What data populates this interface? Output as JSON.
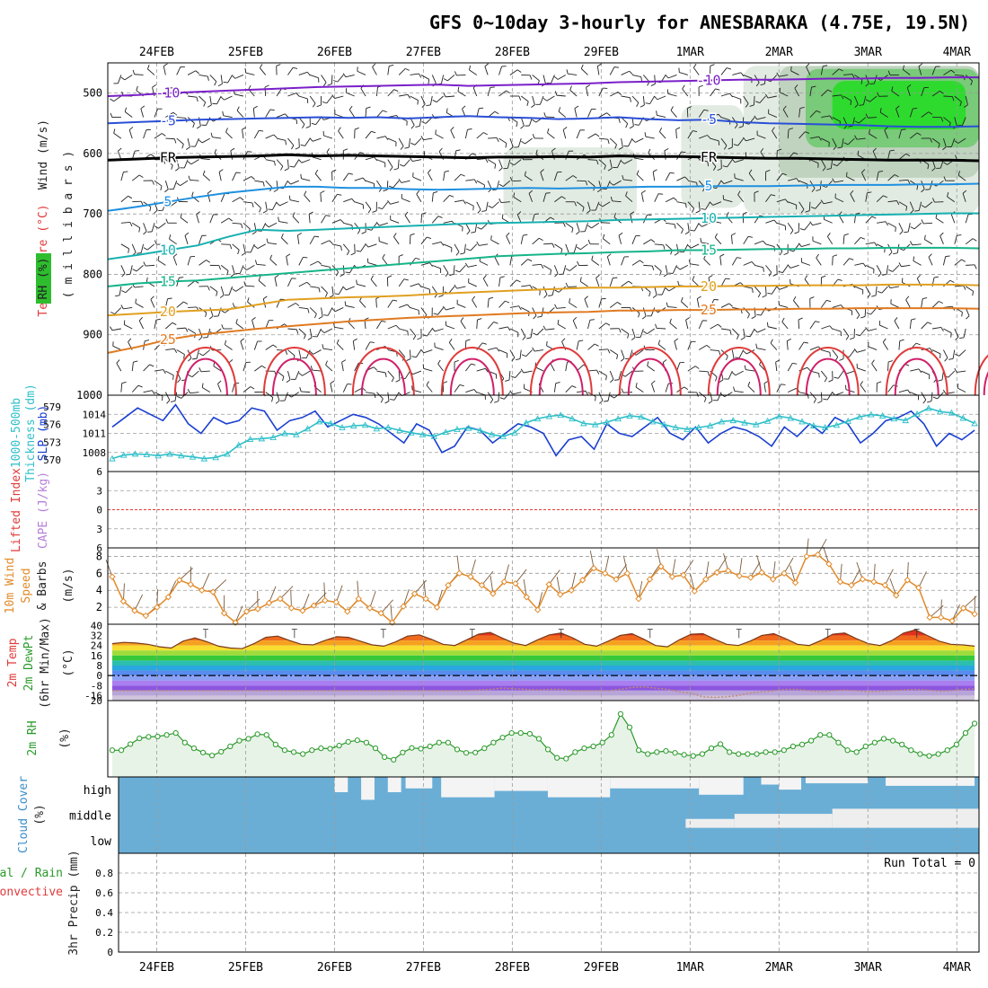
{
  "colors": {
    "grid": "#9a9a9a",
    "wind_barb": "#222222",
    "temp_minus10": "#7a1fc9",
    "temp_minus5": "#2a4fd6",
    "temp_fr": "#000000",
    "temp_5": "#1e90e0",
    "temp_10": "#17b0b0",
    "temp_15": "#16b48a",
    "temp_20": "#e0a020",
    "temp_25": "#e07a20",
    "temp_30": "#e03a3a",
    "temp_35": "#d0206a",
    "rh_light": "#dde8dd",
    "rh_mid": "#6cc86c",
    "rh_high": "#22dd22",
    "slp": "#1a3fd0",
    "thickness": "#2fbfc9",
    "lifted_index_zero": "#e03a3a",
    "wind_speed": "#e08a2a",
    "rh2m": "#2a9a2a",
    "rh2m_fill": "#e8f3e8",
    "cloud_fill": "#6aaed6",
    "cloud_clear": "#eeeeee"
  },
  "chart_data": [
    {
      "id": "upper-air",
      "type": "line",
      "title": "GFS 0~10day 3-hourly for ANESBARAKA (4.75E, 19.5N)",
      "x_tick_labels": [
        "24FEB",
        "25FEB",
        "26FEB",
        "27FEB",
        "28FEB",
        "29FEB",
        "1MAR",
        "2MAR",
        "3MAR",
        "4MAR"
      ],
      "x_range_days": [
        -0.55,
        9.25
      ],
      "ylabel_parts": [
        "RH (%)",
        "Temperature (°C)",
        "Wind (m/s)"
      ],
      "ylabel2": "( m i l l i b a r s )",
      "y_ticks": [
        500,
        600,
        700,
        800,
        900,
        1000
      ],
      "ylim": [
        450,
        1000
      ],
      "isotherms": [
        {
          "label": "-10",
          "color_key": "temp_minus10",
          "levels": [
            505,
            503,
            500,
            498,
            496,
            494,
            492,
            490,
            489,
            488,
            487,
            486,
            488,
            487,
            486,
            485,
            484,
            482,
            481,
            480,
            479,
            478,
            478,
            477,
            476,
            476,
            475,
            475,
            474,
            474
          ]
        },
        {
          "label": "-5",
          "color_key": "temp_minus5",
          "levels": [
            550,
            548,
            546,
            544,
            543,
            542,
            541,
            540,
            541,
            540,
            542,
            540,
            538,
            540,
            541,
            543,
            542,
            540,
            543,
            545,
            544,
            548,
            550,
            551,
            552,
            553,
            555,
            556,
            556,
            555
          ]
        },
        {
          "label": "FR",
          "color_key": "temp_fr",
          "levels": [
            611,
            609,
            607,
            606,
            605,
            604,
            602,
            604,
            603,
            604,
            605,
            606,
            607,
            606,
            606,
            605,
            606,
            604,
            605,
            605,
            606,
            607,
            608,
            608,
            609,
            610,
            611,
            611,
            611,
            612
          ]
        },
        {
          "label": "5",
          "color_key": "temp_5",
          "levels": [
            695,
            688,
            680,
            672,
            665,
            660,
            655,
            655,
            657,
            657,
            659,
            660,
            659,
            658,
            657,
            658,
            657,
            656,
            655,
            655,
            654,
            654,
            654,
            653,
            652,
            652,
            652,
            651,
            651,
            650
          ]
        },
        {
          "label": "10",
          "color_key": "temp_10",
          "levels": [
            775,
            768,
            760,
            752,
            738,
            726,
            728,
            726,
            724,
            722,
            720,
            718,
            716,
            715,
            714,
            713,
            712,
            710,
            709,
            708,
            707,
            706,
            705,
            704,
            703,
            702,
            701,
            700,
            699,
            699
          ]
        },
        {
          "label": "15",
          "color_key": "temp_15",
          "levels": [
            820,
            815,
            812,
            810,
            806,
            802,
            798,
            794,
            790,
            786,
            782,
            778,
            774,
            770,
            768,
            766,
            765,
            763,
            762,
            760,
            760,
            759,
            758,
            758,
            757,
            757,
            756,
            756,
            756,
            757
          ]
        },
        {
          "label": "20",
          "color_key": "temp_20",
          "levels": [
            868,
            865,
            862,
            860,
            858,
            850,
            842,
            840,
            838,
            837,
            835,
            832,
            830,
            828,
            826,
            824,
            822,
            822,
            821,
            820,
            820,
            819,
            819,
            818,
            818,
            818,
            817,
            817,
            817,
            818
          ]
        },
        {
          "label": "25",
          "color_key": "temp_25",
          "levels": [
            930,
            920,
            908,
            900,
            895,
            890,
            886,
            882,
            878,
            875,
            872,
            870,
            868,
            866,
            864,
            863,
            862,
            860,
            860,
            859,
            859,
            858,
            858,
            857,
            857,
            856,
            856,
            856,
            856,
            857
          ]
        }
      ],
      "freezing_label": "FR"
    },
    {
      "id": "slp-thickness",
      "type": "line",
      "ylabel_left": [
        "1000-500mb",
        "Thickness (dm)"
      ],
      "ylabel_right": "SLP (mb)",
      "y_ticks_thickness": [
        570,
        573,
        576,
        579
      ],
      "y_ticks_slp": [
        1008,
        1011,
        1014
      ],
      "ylim_slp": [
        1005,
        1017
      ],
      "ylim_thickness": [
        568,
        581
      ],
      "series": [
        {
          "name": "SLP",
          "color_key": "slp",
          "values": [
            1012.0,
            1013.5,
            1015.0,
            1014.0,
            1013.0,
            1015.5,
            1012.5,
            1011.0,
            1013.5,
            1012.5,
            1013.0,
            1015.0,
            1014.5,
            1011.5,
            1013.0,
            1013.5,
            1014.5,
            1012.0,
            1013.0,
            1014.0,
            1013.5,
            1012.5,
            1011.0,
            1009.5,
            1012.5,
            1011.5,
            1008.0,
            1009.0,
            1012.0,
            1011.5,
            1009.5,
            1011.0,
            1012.5,
            1012.0,
            1011.0,
            1007.5,
            1010.0,
            1010.5,
            1008.5,
            1012.5,
            1011.0,
            1010.5,
            1012.0,
            1013.5,
            1011.0,
            1010.0,
            1012.0,
            1009.5,
            1011.0,
            1012.0,
            1011.5,
            1010.5,
            1009.0,
            1012.0,
            1010.5,
            1012.5,
            1011.0,
            1013.5,
            1012.5,
            1009.5,
            1011.0,
            1013.0,
            1013.5,
            1014.5,
            1012.5,
            1009.0,
            1011.0,
            1010.0,
            1011.5
          ]
        },
        {
          "name": "Thickness",
          "color_key": "thickness",
          "values": [
            570.2,
            570.8,
            571.0,
            570.9,
            570.7,
            571.0,
            570.7,
            570.5,
            570.2,
            570.4,
            571.0,
            572.5,
            573.5,
            573.6,
            573.8,
            574.5,
            574.3,
            575.3,
            576.5,
            576.2,
            575.5,
            575.8,
            575.9,
            575.3,
            575.5,
            575.0,
            574.6,
            574.3,
            574.0,
            574.7,
            575.2,
            575.4,
            575.0,
            574.3,
            574.0,
            574.6,
            576.3,
            577.0,
            577.4,
            577.6,
            577.0,
            576.2,
            576.0,
            576.4,
            577.0,
            577.5,
            577.3,
            576.5,
            576.0,
            575.5,
            575.2,
            575.5,
            575.8,
            576.5,
            576.7,
            576.3,
            576.0,
            576.6,
            577.4,
            577.1,
            576.5,
            575.8,
            575.5,
            575.9,
            576.6,
            577.3,
            577.7,
            577.5,
            577.0,
            576.7,
            577.8,
            578.8,
            578.2,
            578.0,
            577.1,
            576.2
          ]
        }
      ]
    },
    {
      "id": "cape-li",
      "type": "line",
      "ylabel_left": "Lifted Index",
      "ylabel_right": "CAPE (J/kg)",
      "y_tick_labels": [
        "6",
        "3",
        "0",
        "3",
        "6"
      ],
      "ylim": [
        -6,
        6
      ],
      "zero_line_value": 0
    },
    {
      "id": "wind10m",
      "type": "line",
      "ylabel": [
        "10m Wind",
        "Speed",
        "& Barbs",
        "(m/s)"
      ],
      "y_ticks": [
        2,
        4,
        6,
        8
      ],
      "ylim": [
        0,
        9
      ],
      "series": [
        {
          "name": "10m wind speed",
          "color_key": "wind_speed",
          "values": [
            5.6,
            2.7,
            1.6,
            1.0,
            2.0,
            3.2,
            5.2,
            4.7,
            4.0,
            3.8,
            1.3,
            0.2,
            1.5,
            1.8,
            2.5,
            3.0,
            1.9,
            1.6,
            2.2,
            2.8,
            2.6,
            1.5,
            3.0,
            1.9,
            1.3,
            0.2,
            2.1,
            3.6,
            3.0,
            2.0,
            4.6,
            6.0,
            5.6,
            4.6,
            3.6,
            5.0,
            4.8,
            3.2,
            1.7,
            4.7,
            3.5,
            4.0,
            5.2,
            6.6,
            6.0,
            5.3,
            6.0,
            3.0,
            5.3,
            6.8,
            5.6,
            5.8,
            3.9,
            5.3,
            6.1,
            6.3,
            5.7,
            5.5,
            6.1,
            5.3,
            6.0,
            4.9,
            8.0,
            8.2,
            7.1,
            5.0,
            4.6,
            5.3,
            5.0,
            4.6,
            3.4,
            5.2,
            4.3,
            0.8,
            0.8,
            0.4,
            1.9,
            1.2
          ]
        }
      ]
    },
    {
      "id": "temp2m",
      "type": "area",
      "ylabel": [
        "2m Temp",
        "2m DewPt",
        "(6hr Min/Max)",
        "(°C)"
      ],
      "y_tick_labels": [
        "40",
        "32",
        "24",
        "16",
        "8",
        "0",
        "-8",
        "-16"
      ],
      "ylim": [
        -20,
        41
      ],
      "series": [
        {
          "name": "2m Temp",
          "values": [
            25.5,
            26.5,
            26.0,
            25.0,
            23.0,
            22.0,
            27.5,
            30.0,
            27.0,
            23.5,
            22.0,
            21.5,
            25.5,
            30.5,
            31.5,
            28.0,
            25.0,
            24.5,
            28.0,
            31.0,
            30.5,
            27.5,
            24.5,
            23.5,
            27.0,
            31.5,
            32.5,
            29.0,
            25.0,
            24.0,
            28.5,
            33.0,
            34.5,
            30.0,
            26.0,
            24.0,
            28.5,
            32.5,
            34.0,
            30.0,
            25.0,
            23.5,
            27.5,
            32.0,
            33.5,
            29.0,
            24.0,
            23.0,
            28.5,
            33.0,
            33.5,
            29.0,
            25.0,
            24.0,
            27.5,
            32.0,
            33.5,
            29.5,
            25.0,
            24.0,
            28.0,
            33.0,
            34.0,
            29.5,
            25.5,
            24.0,
            28.0,
            34.0,
            36.5,
            32.0,
            27.5,
            25.0,
            24.5,
            23.5
          ]
        },
        {
          "name": "2m DewPt",
          "values": [
            -12.0,
            -12.0,
            -12.0,
            -12.0,
            -12.0,
            -12.0,
            -12.0,
            -12.0,
            -12.0,
            -12.0,
            -12.0,
            -12.0,
            -12.0,
            -12.0,
            -12.0,
            -12.0,
            -12.0,
            -12.0,
            -12.0,
            -12.0,
            -12.0,
            -12.0,
            -12.0,
            -12.0,
            -12.0,
            -12.0,
            -12.0,
            -12.0,
            -12.0,
            -12.0,
            -12.0,
            -11.5,
            -11.0,
            -10.0,
            -10.5,
            -11.0,
            -11.5,
            -11.0,
            -11.0,
            -12.0,
            -12.0,
            -12.0,
            -12.0,
            -11.0,
            -9.5,
            -9.0,
            -10.0,
            -11.0,
            -13.0,
            -14.0,
            -17.0,
            -17.5,
            -17.0,
            -16.0,
            -14.0,
            -13.0,
            -12.0,
            -11.0,
            -11.0,
            -12.0,
            -13.0,
            -12.0,
            -11.5,
            -12.0,
            -13.0,
            -12.5,
            -12.0,
            -11.5,
            -11.0,
            -11.5,
            -12.5,
            -12.0,
            -11.0,
            -10.5
          ]
        }
      ],
      "zero_line_value": 0
    },
    {
      "id": "rh2m",
      "type": "area",
      "ylabel": [
        "2m RH",
        "(%)"
      ],
      "y_tick_labels": [
        "20"
      ],
      "ylim": [
        0,
        20
      ],
      "series": [
        {
          "name": "2m RH",
          "color_key": "rh2m",
          "values": [
            7.0,
            7.0,
            8.6,
            10.1,
            10.5,
            10.6,
            11.0,
            11.5,
            9.0,
            7.5,
            6.4,
            5.6,
            6.6,
            8.0,
            9.5,
            10.0,
            11.2,
            11.0,
            8.5,
            7.0,
            6.5,
            6.0,
            7.0,
            7.5,
            7.4,
            8.2,
            9.2,
            9.6,
            9.0,
            7.5,
            5.2,
            4.5,
            6.4,
            7.6,
            7.4,
            8.0,
            9.0,
            9.0,
            7.2,
            6.3,
            6.4,
            7.5,
            9.0,
            10.3,
            11.5,
            11.5,
            11.3,
            10.0,
            7.2,
            5.0,
            4.8,
            6.5,
            7.5,
            8.0,
            9.0,
            11.0,
            16.5,
            13.0,
            7.0,
            6.0,
            6.5,
            6.8,
            6.3,
            5.8,
            5.5,
            6.0,
            7.5,
            8.6,
            6.5,
            6.0,
            6.0,
            6.0,
            6.5,
            6.5,
            7.0,
            8.0,
            8.5,
            9.5,
            11.0,
            11.0,
            9.0,
            7.0,
            6.5,
            8.0,
            9.0,
            10.0,
            9.5,
            8.5,
            7.0,
            6.0,
            5.5,
            6.0,
            7.0,
            8.5,
            11.5,
            14.0
          ]
        }
      ]
    },
    {
      "id": "cloud",
      "type": "bar",
      "ylabel": [
        "Cloud Cover",
        "(%)"
      ],
      "levels": [
        "high",
        "middle",
        "low"
      ],
      "high_clear": [
        1.0,
        1.0,
        1.0,
        1.0,
        1.0,
        1.0,
        1.0,
        1.0,
        1.0,
        1.0,
        1.0,
        1.0,
        1.0,
        1.0,
        1.0,
        1.0,
        1.0,
        1.0,
        1.0,
        1.0,
        1.0,
        1.0,
        1.0,
        1.0,
        1.0,
        1.0,
        1.0,
        1.0,
        1.0,
        1.0,
        1.0,
        1.0,
        1.0,
        1.0,
        1.0,
        1.0,
        1.0,
        1.0,
        1.0,
        1.0,
        1.0,
        1.0,
        1.0,
        1.0,
        1.0,
        1.0,
        1.0,
        1.0,
        1.0,
        1.0,
        1.0,
        1.0,
        1.0,
        1.0,
        1.0,
        1.0,
        1.0,
        1.0,
        1.0,
        1.0,
        1.0,
        1.0,
        1.0,
        1.0,
        1.0,
        1.0,
        1.0,
        1.0,
        1.0,
        1.0,
        1.0,
        1.0,
        1.0,
        1.0,
        1.0,
        1.0,
        1.0,
        1.0
      ]
    },
    {
      "id": "precip",
      "type": "bar",
      "ylabel_left": [
        "Total / Rain",
        "Convective"
      ],
      "ylabel_right": "3hr Precip (mm)",
      "y_ticks": [
        0,
        0.2,
        0.4,
        0.6,
        0.8
      ],
      "ylim": [
        0,
        1.0
      ],
      "run_total_label": "Run Total = 0",
      "x_tick_labels": [
        "24FEB",
        "25FEB",
        "26FEB",
        "27FEB",
        "28FEB",
        "29FEB",
        "1MAR",
        "2MAR",
        "3MAR",
        "4MAR"
      ]
    }
  ]
}
